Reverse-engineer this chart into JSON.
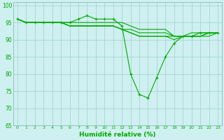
{
  "xlabel": "Humidité relative (%)",
  "background_color": "#cff0f0",
  "grid_color": "#b0d8d8",
  "line_color": "#00aa00",
  "xlim": [
    -0.5,
    23.5
  ],
  "ylim": [
    65,
    101
  ],
  "yticks": [
    65,
    70,
    75,
    80,
    85,
    90,
    95,
    100
  ],
  "xticks": [
    0,
    1,
    2,
    3,
    4,
    5,
    6,
    7,
    8,
    9,
    10,
    11,
    12,
    13,
    14,
    15,
    16,
    17,
    18,
    19,
    20,
    21,
    22,
    23
  ],
  "series": [
    [
      96,
      95,
      95,
      95,
      95,
      95,
      95,
      96,
      97,
      96,
      96,
      96,
      94,
      80,
      74,
      73,
      79,
      85,
      89,
      91,
      91,
      92,
      92,
      92
    ],
    [
      96,
      95,
      95,
      95,
      95,
      95,
      94,
      94,
      94,
      94,
      94,
      94,
      93,
      92,
      91,
      91,
      91,
      91,
      91,
      91,
      91,
      91,
      92,
      92
    ],
    [
      96,
      95,
      95,
      95,
      95,
      95,
      94,
      94,
      94,
      94,
      94,
      94,
      93,
      92,
      91,
      91,
      91,
      91,
      90,
      91,
      91,
      91,
      91,
      92
    ],
    [
      96,
      95,
      95,
      95,
      95,
      95,
      94,
      94,
      94,
      94,
      94,
      94,
      93,
      93,
      92,
      92,
      92,
      92,
      91,
      91,
      91,
      91,
      92,
      92
    ],
    [
      96,
      95,
      95,
      95,
      95,
      95,
      95,
      95,
      95,
      95,
      95,
      95,
      95,
      94,
      93,
      93,
      93,
      93,
      91,
      91,
      92,
      92,
      92,
      92
    ]
  ]
}
